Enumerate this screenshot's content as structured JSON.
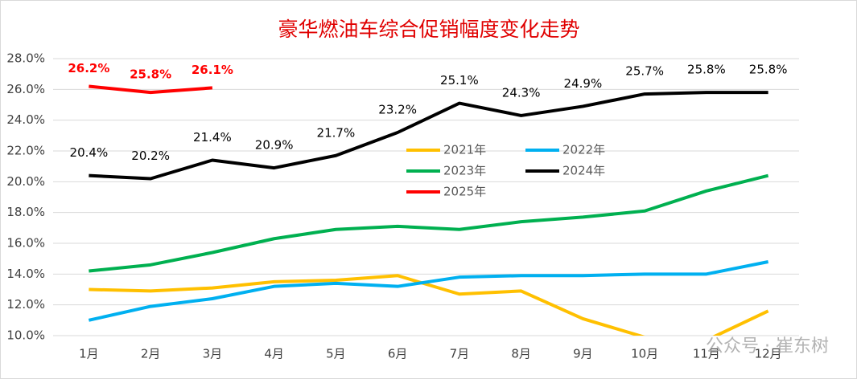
{
  "chart_data": {
    "type": "line",
    "title": "豪华燃油车综合促销幅度变化走势",
    "categories": [
      "1月",
      "2月",
      "3月",
      "4月",
      "5月",
      "6月",
      "7月",
      "8月",
      "9月",
      "10月",
      "11月",
      "12月"
    ],
    "series": [
      {
        "name": "2021年",
        "color": "#ffc000",
        "values": [
          13.0,
          12.9,
          13.1,
          13.5,
          13.6,
          13.9,
          12.7,
          12.9,
          11.1,
          9.9,
          9.7,
          11.6
        ]
      },
      {
        "name": "2022年",
        "color": "#00b0f0",
        "values": [
          11.0,
          11.9,
          12.4,
          13.2,
          13.4,
          13.2,
          13.8,
          13.9,
          13.9,
          14.0,
          14.0,
          14.8
        ]
      },
      {
        "name": "2023年",
        "color": "#00b050",
        "values": [
          14.2,
          14.6,
          15.4,
          16.3,
          16.9,
          17.1,
          16.9,
          17.4,
          17.7,
          18.1,
          19.4,
          20.4
        ]
      },
      {
        "name": "2024年",
        "color": "#000000",
        "values": [
          20.4,
          20.2,
          21.4,
          20.9,
          21.7,
          23.2,
          25.1,
          24.3,
          24.9,
          25.7,
          25.8,
          25.8
        ],
        "value_labels": [
          "20.4%",
          "20.2%",
          "21.4%",
          "20.9%",
          "21.7%",
          "23.2%",
          "25.1%",
          "24.3%",
          "24.9%",
          "25.7%",
          "25.8%",
          "25.8%"
        ]
      },
      {
        "name": "2025年",
        "color": "#ff0000",
        "values": [
          26.2,
          25.8,
          26.1,
          null,
          null,
          null,
          null,
          null,
          null,
          null,
          null,
          null
        ],
        "value_labels": [
          "26.2%",
          "25.8%",
          "26.1%",
          null,
          null,
          null,
          null,
          null,
          null,
          null,
          null,
          null
        ]
      }
    ],
    "ylim": [
      10,
      28
    ],
    "yticks": [
      {
        "value": 10,
        "label": "10.0%"
      },
      {
        "value": 12,
        "label": "12.0%"
      },
      {
        "value": 14,
        "label": "14.0%"
      },
      {
        "value": 16,
        "label": "16.0%"
      },
      {
        "value": 18,
        "label": "18.0%"
      },
      {
        "value": 20,
        "label": "20.0%"
      },
      {
        "value": 22,
        "label": "22.0%"
      },
      {
        "value": 24,
        "label": "24.0%"
      },
      {
        "value": 26,
        "label": "26.0%"
      },
      {
        "value": 28,
        "label": "28.0%"
      }
    ],
    "grid": true,
    "watermark": "公众号 · 崔东树"
  }
}
